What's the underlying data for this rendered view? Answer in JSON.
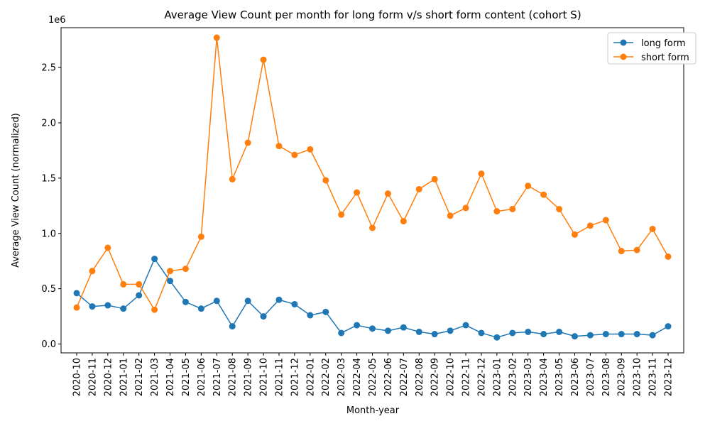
{
  "chart_data": {
    "type": "line",
    "title": "Average View Count per month for long form v/s short form content (cohort S)",
    "xlabel": "Month-year",
    "ylabel": "Average View Count (normalized)",
    "y_offset_label": "1e6",
    "y_scale": 1000000,
    "ylim": [
      -0.08,
      2.86
    ],
    "yticks": [
      0.0,
      0.5,
      1.0,
      1.5,
      2.0,
      2.5
    ],
    "ytick_labels": [
      "0.0",
      "0.5",
      "1.0",
      "1.5",
      "2.0",
      "2.5"
    ],
    "legend_position": "top-right",
    "categories": [
      "2020-10",
      "2020-11",
      "2020-12",
      "2021-01",
      "2021-02",
      "2021-03",
      "2021-04",
      "2021-05",
      "2021-06",
      "2021-07",
      "2021-08",
      "2021-09",
      "2021-10",
      "2021-11",
      "2021-12",
      "2022-01",
      "2022-02",
      "2022-03",
      "2022-04",
      "2022-05",
      "2022-06",
      "2022-07",
      "2022-08",
      "2022-09",
      "2022-10",
      "2022-11",
      "2022-12",
      "2023-01",
      "2023-02",
      "2023-03",
      "2023-04",
      "2023-05",
      "2023-06",
      "2023-07",
      "2023-08",
      "2023-09",
      "2023-10",
      "2023-11",
      "2023-12"
    ],
    "series": [
      {
        "name": "long form",
        "color": "#1f77b4",
        "values": [
          0.46,
          0.34,
          0.35,
          0.32,
          0.44,
          0.77,
          0.57,
          0.38,
          0.32,
          0.39,
          0.16,
          0.39,
          0.25,
          0.4,
          0.36,
          0.26,
          0.29,
          0.1,
          0.17,
          0.14,
          0.12,
          0.15,
          0.11,
          0.09,
          0.12,
          0.17,
          0.1,
          0.06,
          0.1,
          0.11,
          0.09,
          0.11,
          0.07,
          0.08,
          0.09,
          0.09,
          0.09,
          0.08,
          0.16
        ]
      },
      {
        "name": "short form",
        "color": "#ff7f0e",
        "values": [
          0.33,
          0.66,
          0.87,
          0.54,
          0.54,
          0.31,
          0.66,
          0.68,
          0.97,
          2.77,
          1.49,
          1.82,
          2.57,
          1.79,
          1.71,
          1.76,
          1.48,
          1.17,
          1.37,
          1.05,
          1.36,
          1.11,
          1.4,
          1.49,
          1.16,
          1.23,
          1.54,
          1.2,
          1.22,
          1.43,
          1.35,
          1.22,
          0.99,
          1.07,
          1.12,
          0.84,
          0.85,
          1.04,
          0.79
        ]
      }
    ]
  }
}
